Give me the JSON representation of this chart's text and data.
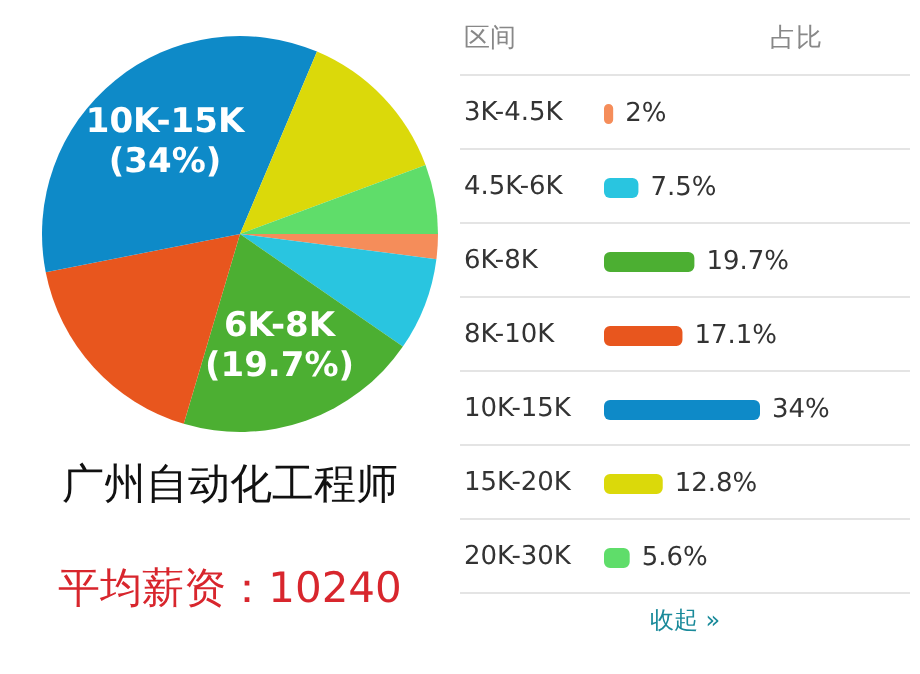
{
  "chart_data": [
    {
      "type": "pie",
      "title": "广州自动化工程师",
      "subtitle": "平均薪资：10240",
      "categories": [
        null,
        null,
        "6K-8K",
        null,
        "10K-15K",
        null,
        null
      ],
      "values": [
        2,
        7.5,
        19.7,
        17.1,
        34,
        12.8,
        5.6
      ],
      "colors": [
        "#f58d5a",
        "#29c5e0",
        "#4caf32",
        "#e8561e",
        "#0e8ac8",
        "#dbd90a",
        "#5fdd6a"
      ],
      "value_labels": [
        null,
        null,
        "(19.7%)",
        null,
        "(34%)",
        null,
        null
      ]
    },
    {
      "type": "bar",
      "orientation": "horizontal",
      "categories": [
        "3K-4.5K",
        "4.5K-6K",
        "6K-8K",
        "8K-10K",
        "10K-15K",
        "15K-20K",
        "20K-30K"
      ],
      "values": [
        2,
        7.5,
        19.7,
        17.1,
        34,
        12.8,
        5.6
      ],
      "colors": [
        "#f58d5a",
        "#29c5e0",
        "#4caf32",
        "#e8561e",
        "#0e8ac8",
        "#dbd90a",
        "#5fdd6a"
      ],
      "value_labels": [
        "2%",
        "7.5%",
        "19.7%",
        "17.1%",
        "34%",
        "12.8%",
        "5.6%"
      ],
      "annotations": [
        "区间",
        "占比",
        "收起 »"
      ]
    }
  ]
}
